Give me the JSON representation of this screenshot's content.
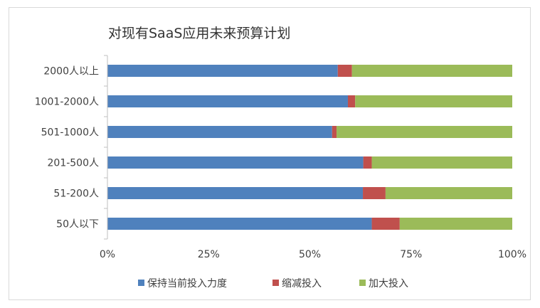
{
  "chart_data": {
    "type": "bar",
    "orientation": "horizontal",
    "stacked": "percent",
    "title": "对现有SaaS应用未来预算计划",
    "categories": [
      "2000人以上",
      "1001-2000人",
      "501-1000人",
      "201-500人",
      "51-200人",
      "50人以下"
    ],
    "series": [
      {
        "name": "保持当前投入力度",
        "color": "#4f81bd",
        "values": [
          56.9,
          59.4,
          55.5,
          63.2,
          63.1,
          65.3
        ]
      },
      {
        "name": "缩减投入",
        "color": "#c0504d",
        "values": [
          3.5,
          1.8,
          1.1,
          2.1,
          5.6,
          6.9
        ]
      },
      {
        "name": "加大投入",
        "color": "#9bbb59",
        "values": [
          39.6,
          38.8,
          43.4,
          34.7,
          31.3,
          27.8
        ]
      }
    ],
    "xlim": [
      0,
      100
    ],
    "x_ticks": [
      "0%",
      "25%",
      "50%",
      "75%",
      "100%"
    ],
    "grid": false,
    "legend_position": "bottom"
  }
}
